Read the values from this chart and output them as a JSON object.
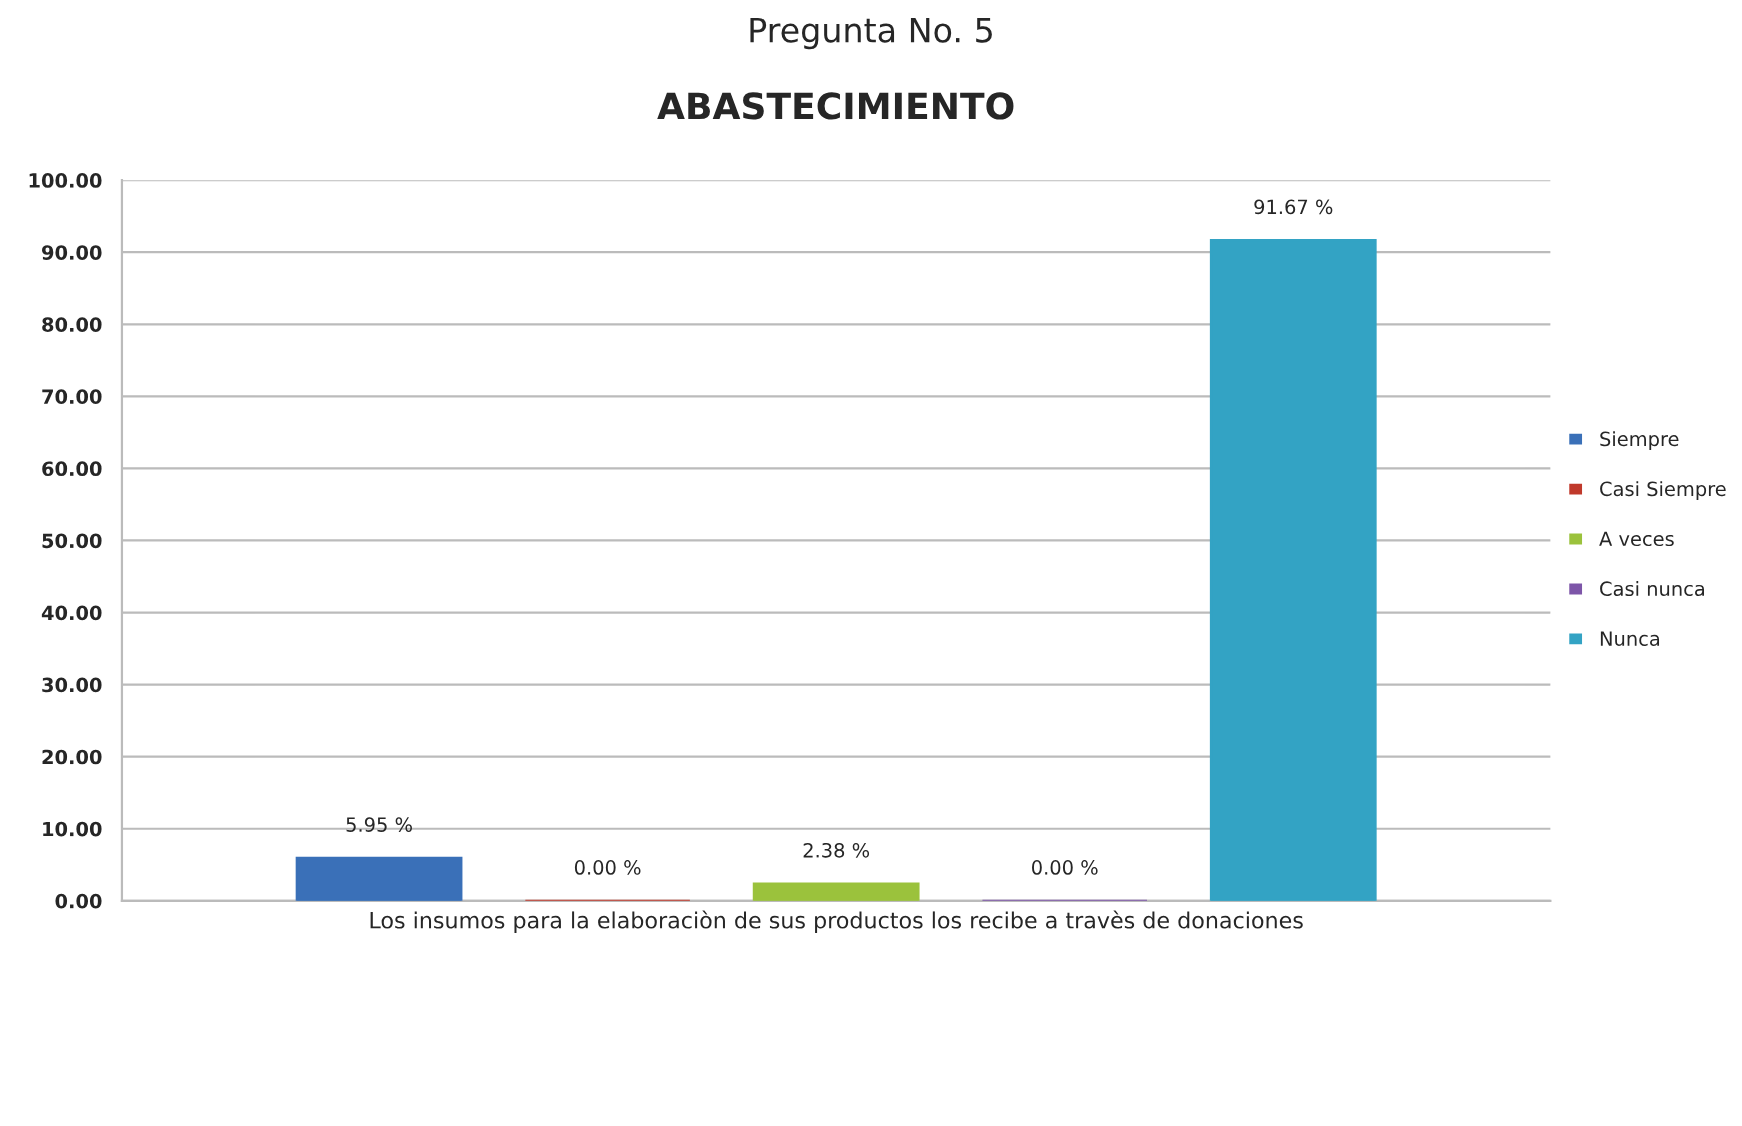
{
  "chart_data": {
    "type": "bar",
    "title": "ABASTECIMIENTO",
    "subtitle": "Pregunta No. 5",
    "categories": [
      "Los insumos para la elaboraciòn de sus productos los recibe a travès de donaciones"
    ],
    "series": [
      {
        "name": "Siempre",
        "color": "#3a70b8",
        "values": [
          5.95
        ],
        "value_labels": [
          "5.95 %"
        ]
      },
      {
        "name": "Casi Siempre",
        "color": "#c0392b",
        "values": [
          0.0
        ],
        "value_labels": [
          "0.00 %"
        ]
      },
      {
        "name": "A veces",
        "color": "#9bc23c",
        "values": [
          2.38
        ],
        "value_labels": [
          "2.38 %"
        ]
      },
      {
        "name": "Casi nunca",
        "color": "#7d55a8",
        "values": [
          0.0
        ],
        "value_labels": [
          "0.00 %"
        ]
      },
      {
        "name": "Nunca",
        "color": "#33a3c4",
        "values": [
          91.67
        ],
        "value_labels": [
          "91.67 %"
        ]
      }
    ],
    "ylim": [
      0,
      100
    ],
    "yticks": [
      {
        "value": 0,
        "label": "0.00"
      },
      {
        "value": 10,
        "label": "10.00"
      },
      {
        "value": 20,
        "label": "20.00"
      },
      {
        "value": 30,
        "label": "30.00"
      },
      {
        "value": 40,
        "label": "40.00"
      },
      {
        "value": 50,
        "label": "50.00"
      },
      {
        "value": 60,
        "label": "60.00"
      },
      {
        "value": 70,
        "label": "70.00"
      },
      {
        "value": 80,
        "label": "80.00"
      },
      {
        "value": 90,
        "label": "90.00"
      },
      {
        "value": 100,
        "label": "100.00"
      }
    ],
    "grid": "y",
    "legend": "right"
  }
}
